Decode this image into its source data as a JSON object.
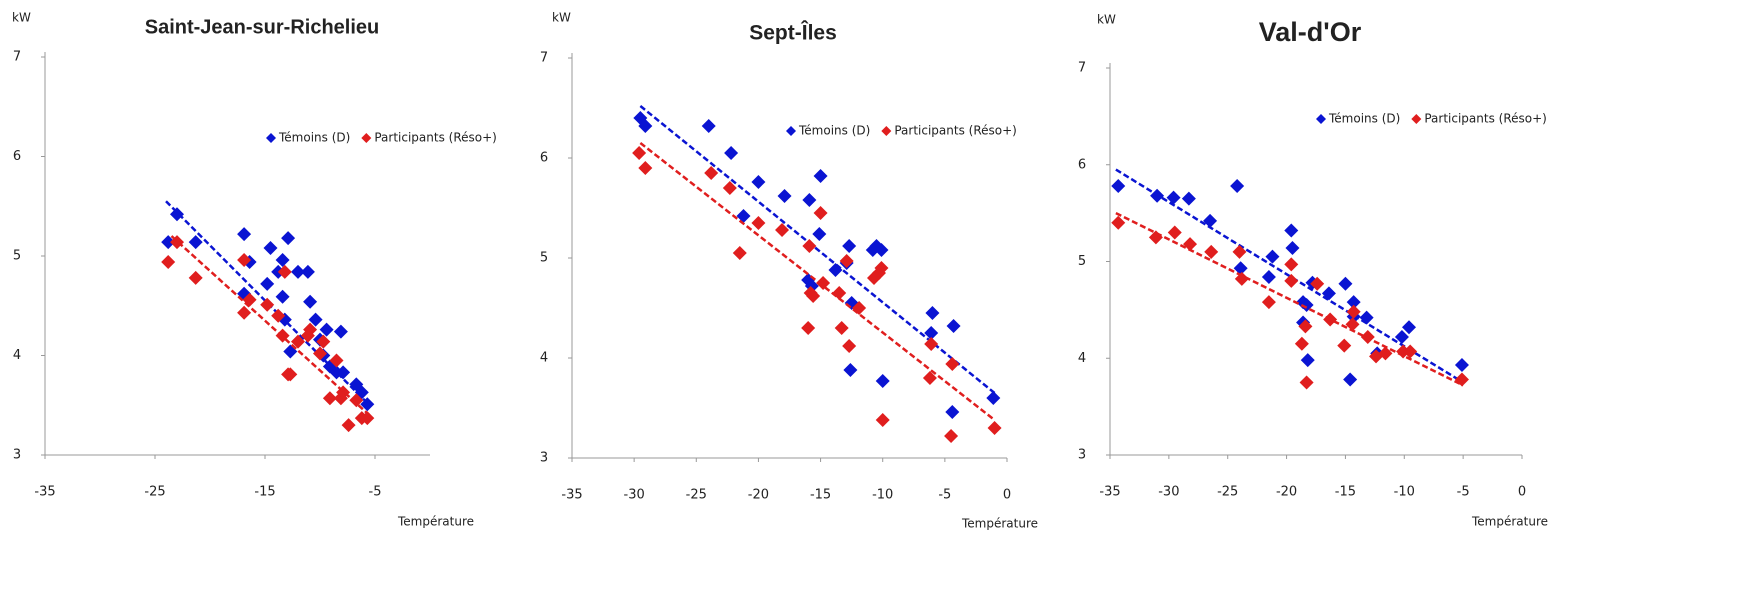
{
  "chart_data": [
    {
      "type": "scatter",
      "title": "Saint-Jean-sur-Richelieu",
      "ylabel": "kW",
      "xlabel": "Température",
      "xlim": [
        -35,
        0
      ],
      "ylim": [
        3,
        7
      ],
      "xticks": [
        -35,
        -25,
        -15,
        -5
      ],
      "yticks": [
        3,
        4,
        5,
        6,
        7
      ],
      "legend": "upper right",
      "series": [
        {
          "name": "Témoins (D)",
          "color": "#0a14d2",
          "x": [
            -23.8,
            -23.0,
            -21.3,
            -16.9,
            -16.4,
            -16.9,
            -14.8,
            -14.5,
            -13.4,
            -13.8,
            -13.4,
            -13.2,
            -12.9,
            -12.7,
            -12.0,
            -11.1,
            -10.9,
            -10.4,
            -10.0,
            -9.4,
            -9.7,
            -9.1,
            -8.1,
            -8.5,
            -7.9,
            -6.7,
            -6.2,
            -5.7
          ],
          "values": [
            5.14,
            5.42,
            5.14,
            5.22,
            4.94,
            4.62,
            4.72,
            5.08,
            4.96,
            4.84,
            4.59,
            4.36,
            5.18,
            4.04,
            4.84,
            4.84,
            4.54,
            4.36,
            4.16,
            4.26,
            4.0,
            3.89,
            4.24,
            3.83,
            3.83,
            3.71,
            3.63,
            3.51
          ],
          "trendline": {
            "x": [
              -24,
              -5.5
            ],
            "y": [
              5.55,
              3.5
            ]
          }
        },
        {
          "name": "Participants (Réso+)",
          "color": "#e01e1e",
          "x": [
            -23.8,
            -23.0,
            -21.3,
            -16.9,
            -16.9,
            -16.4,
            -14.8,
            -13.8,
            -13.4,
            -13.2,
            -12.9,
            -12.7,
            -12.0,
            -11.1,
            -10.9,
            -10.0,
            -9.7,
            -9.1,
            -8.5,
            -8.1,
            -7.9,
            -7.4,
            -6.7,
            -6.2,
            -5.7
          ],
          "values": [
            4.94,
            5.14,
            4.78,
            4.96,
            4.43,
            4.56,
            4.51,
            4.4,
            4.2,
            4.84,
            3.81,
            3.81,
            4.14,
            4.2,
            4.26,
            4.02,
            4.14,
            3.57,
            3.95,
            3.57,
            3.63,
            3.3,
            3.55,
            3.37,
            3.37
          ],
          "trendline": {
            "x": [
              -23.5,
              -5.5
            ],
            "y": [
              5.2,
              3.4
            ]
          }
        }
      ]
    },
    {
      "type": "scatter",
      "title": "Sept-Îles",
      "ylabel": "kW",
      "xlabel": "Température",
      "xlim": [
        -35,
        0
      ],
      "ylim": [
        3,
        7
      ],
      "xticks": [
        -35,
        -30,
        -25,
        -20,
        -15,
        -10,
        -5,
        0
      ],
      "yticks": [
        3,
        4,
        5,
        6,
        7
      ],
      "legend": "upper right",
      "series": [
        {
          "name": "Témoins (D)",
          "color": "#0a14d2",
          "x": [
            -29.5,
            -29.1,
            -24,
            -22.2,
            -20,
            -21.2,
            -17.9,
            -15.9,
            -15.0,
            -15.1,
            -16,
            -15.7,
            -13.8,
            -12.7,
            -12.9,
            -12.5,
            -12.6,
            -10.8,
            -10.5,
            -10.1,
            -10.0,
            -6,
            -6.1,
            -4.3,
            -4.4,
            -1.1
          ],
          "values": [
            6.4,
            6.32,
            6.32,
            6.05,
            5.76,
            5.42,
            5.62,
            5.58,
            5.82,
            5.24,
            4.78,
            4.72,
            4.88,
            5.12,
            4.95,
            4.55,
            3.88,
            5.08,
            5.12,
            5.08,
            3.77,
            4.45,
            4.25,
            4.32,
            3.46,
            3.6
          ],
          "trendline": {
            "x": [
              -29.5,
              -1
            ],
            "y": [
              6.52,
              3.65
            ]
          }
        },
        {
          "name": "Participants (Réso+)",
          "color": "#e01e1e",
          "x": [
            -29.6,
            -29.1,
            -23.8,
            -22.3,
            -21.5,
            -20,
            -18.1,
            -15.9,
            -15.0,
            -15.8,
            -15.6,
            -14.8,
            -16,
            -13.5,
            -12.9,
            -13.3,
            -12.7,
            -11.9,
            -10.7,
            -10.3,
            -10.1,
            -10.0,
            -6.2,
            -6.1,
            -4.4,
            -4.5,
            -1.0
          ],
          "values": [
            6.05,
            5.9,
            5.85,
            5.7,
            5.05,
            5.35,
            5.28,
            5.12,
            5.45,
            4.65,
            4.62,
            4.75,
            4.3,
            4.65,
            4.97,
            4.3,
            4.12,
            4.5,
            4.8,
            4.85,
            4.9,
            3.38,
            3.8,
            4.14,
            3.94,
            3.22,
            3.3
          ],
          "trendline": {
            "x": [
              -29.5,
              -1
            ],
            "y": [
              6.15,
              3.38
            ]
          }
        }
      ]
    },
    {
      "type": "scatter",
      "title": "Val-d'Or",
      "ylabel": "kW",
      "xlabel": "Température",
      "xlim": [
        -35,
        0
      ],
      "ylim": [
        3,
        7
      ],
      "xticks": [
        -35,
        -30,
        -25,
        -20,
        -15,
        -10,
        -5,
        0
      ],
      "yticks": [
        3,
        4,
        5,
        6,
        7
      ],
      "legend": "upper right",
      "series": [
        {
          "name": "Témoins (D)",
          "color": "#0a14d2",
          "x": [
            -34.3,
            -31,
            -29.6,
            -28.3,
            -26.5,
            -24.2,
            -23.9,
            -21.5,
            -21.2,
            -19.6,
            -19.5,
            -18.6,
            -18.3,
            -18.6,
            -18.2,
            -17.8,
            -16.4,
            -15,
            -14.3,
            -14.6,
            -14.3,
            -13.2,
            -12.3,
            -10.2,
            -9.6,
            -5.1
          ],
          "values": [
            5.78,
            5.68,
            5.66,
            5.65,
            5.42,
            5.78,
            4.93,
            4.84,
            5.05,
            5.32,
            5.14,
            4.58,
            4.55,
            4.37,
            3.98,
            4.78,
            4.67,
            4.77,
            4.58,
            3.78,
            4.43,
            4.42,
            4.05,
            4.22,
            4.32,
            3.93
          ],
          "trendline": {
            "x": [
              -34.5,
              -5
            ],
            "y": [
              5.95,
              3.75
            ]
          }
        },
        {
          "name": "Participants (Réso+)",
          "color": "#e01e1e",
          "x": [
            -34.3,
            -31.1,
            -29.5,
            -28.2,
            -26.4,
            -24,
            -23.8,
            -21.5,
            -19.6,
            -19.6,
            -18.7,
            -18.4,
            -18.3,
            -17.4,
            -16.3,
            -15.1,
            -14.4,
            -14.3,
            -13.1,
            -12.4,
            -11.6,
            -10.1,
            -9.5,
            -5.1
          ],
          "values": [
            5.4,
            5.25,
            5.3,
            5.18,
            5.1,
            5.1,
            4.82,
            4.58,
            4.97,
            4.8,
            4.15,
            4.33,
            3.75,
            4.77,
            4.4,
            4.13,
            4.35,
            4.48,
            4.22,
            4.02,
            4.05,
            4.07,
            4.07,
            3.78
          ],
          "trendline": {
            "x": [
              -34.5,
              -5
            ],
            "y": [
              5.5,
              3.72
            ]
          }
        }
      ]
    }
  ]
}
